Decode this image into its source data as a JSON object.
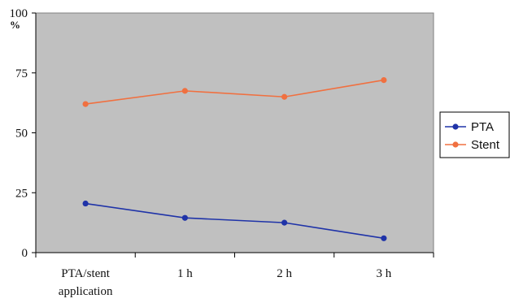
{
  "chart_data": {
    "type": "line",
    "ylabel": "%",
    "ylim": [
      0,
      100
    ],
    "yticks": [
      "0",
      "25",
      "50",
      "75",
      "100"
    ],
    "categories": [
      "PTA/stent application",
      "1 h",
      "2 h",
      "3 h"
    ],
    "category_lines": [
      [
        "PTA/stent",
        "application"
      ],
      [
        "1 h"
      ],
      [
        "2 h"
      ],
      [
        "3 h"
      ]
    ],
    "grid": "horizontal-off",
    "plot_background": "#c0c0c0",
    "legend_placement": "right",
    "series": [
      {
        "name": "PTA",
        "color": "#1f33a8",
        "values": [
          20.5,
          14.5,
          12.5,
          6
        ]
      },
      {
        "name": "Stent",
        "color": "#f07040",
        "values": [
          62,
          67.5,
          65,
          72
        ]
      }
    ]
  }
}
